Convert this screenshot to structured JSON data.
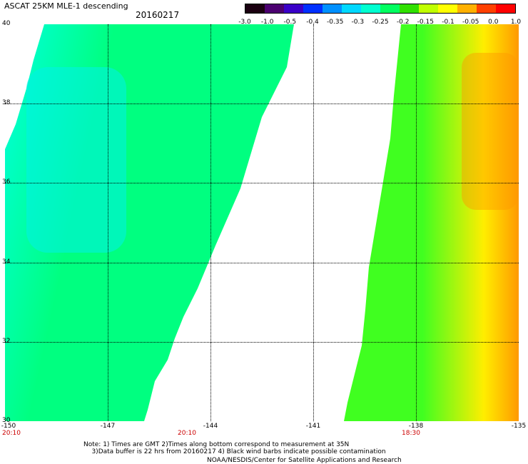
{
  "title": "ASCAT 25KM MLE-1 descending",
  "date": "20160217",
  "colorbar": {
    "labels": [
      "-3.0",
      "-1.0",
      "-0.5",
      "-0.4",
      "-0.35",
      "-0.3",
      "-0.25",
      "-0.2",
      "-0.15",
      "-0.1",
      "-0.05",
      "0.0",
      "1.0"
    ],
    "colors": [
      "#1a0010",
      "#4b0070",
      "#3a00c8",
      "#0030ff",
      "#0090ff",
      "#00d8ff",
      "#00ffd0",
      "#00ff60",
      "#30e000",
      "#c0ff00",
      "#ffff00",
      "#ffb000",
      "#ff4000",
      "#ff0000"
    ]
  },
  "map": {
    "lat_labels": [
      "40",
      "38",
      "36",
      "34",
      "32",
      "30"
    ],
    "lon_labels": [
      "-150",
      "-147",
      "-144",
      "-141",
      "-138",
      "-135"
    ],
    "time_labels": [
      "20:10",
      "20:10",
      "18:30"
    ],
    "regions": {
      "west_swath_color": "#00ff80",
      "west_swath_cyan": "#00ffe0",
      "east_swath_green": "#40ff20",
      "east_swath_yellow": "#ffee00",
      "east_swath_orange": "#ff9900"
    }
  },
  "notes": {
    "line1": "Note: 1) Times are GMT 2)Times along bottom correspond to measurement at 35N",
    "line2": "3)Data buffer is 22 hrs from 20160217 4) Black wind barbs indicate possible contamination"
  },
  "credit": "NOAA/NESDIS/Center for Satellite Applications and Research"
}
